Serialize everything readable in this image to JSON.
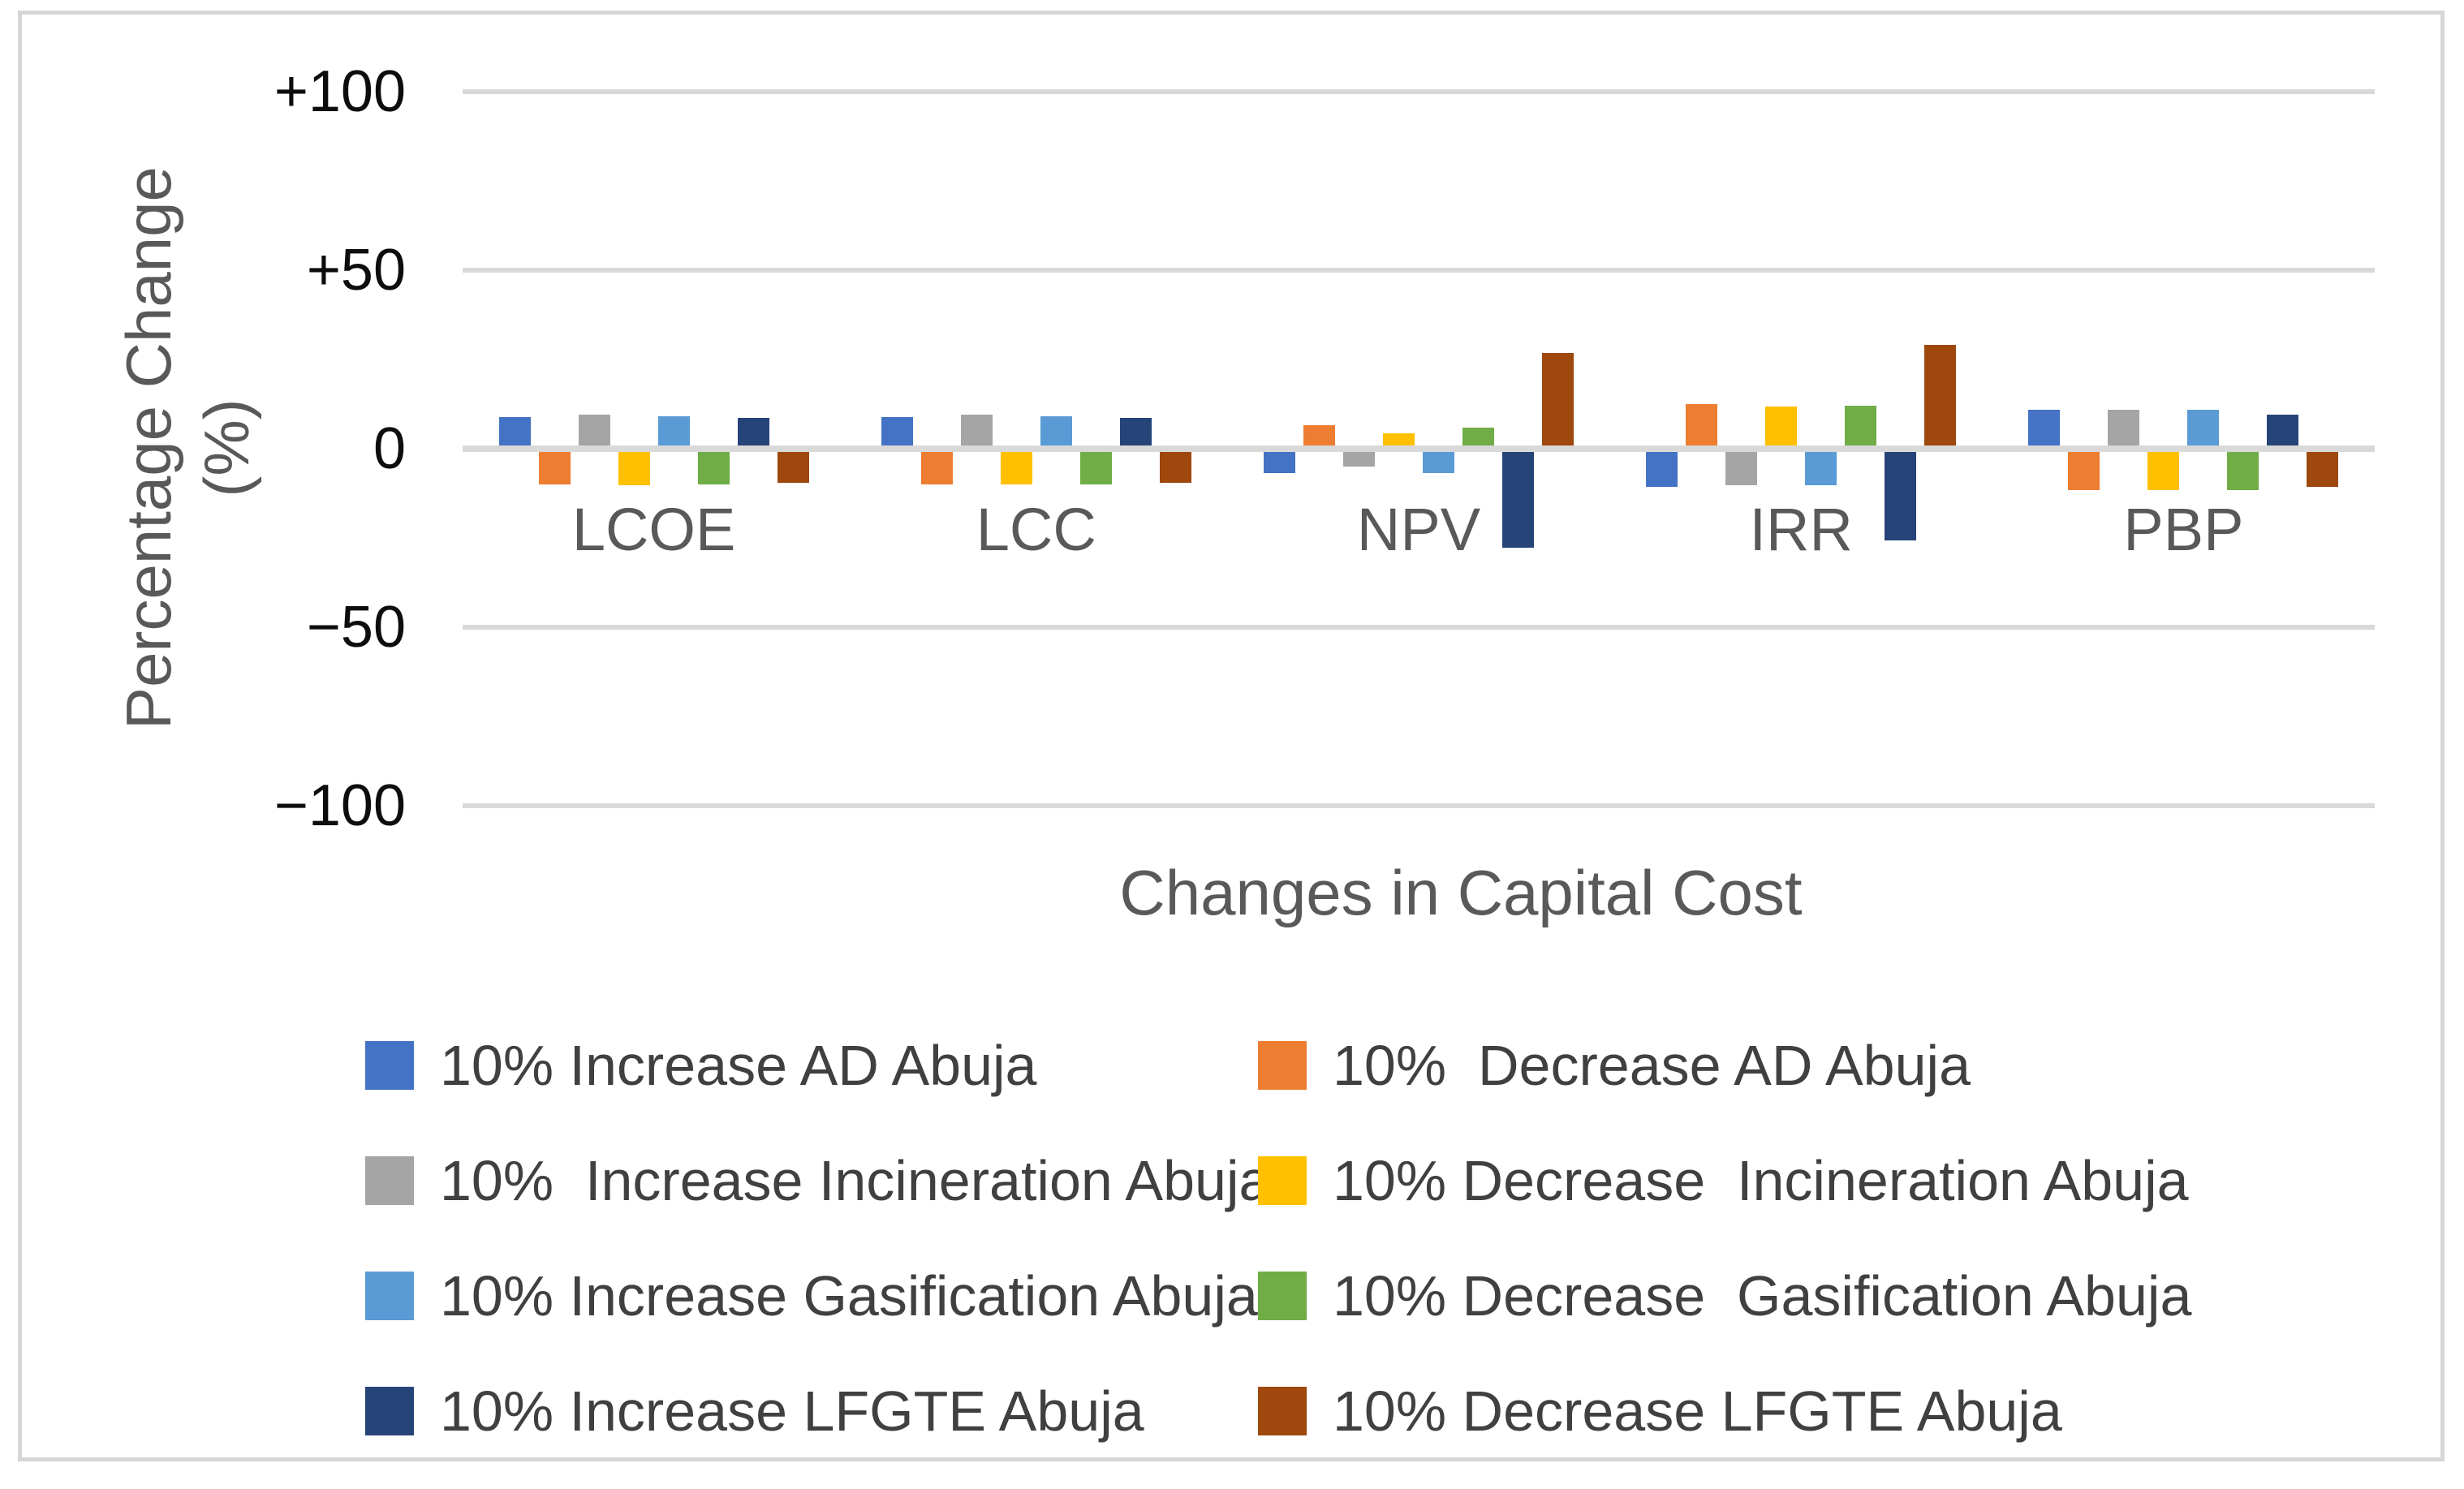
{
  "figure": {
    "x_axis_title": "Changes in Capital Cost",
    "y_axis_title_line1": "Percentage Change",
    "y_axis_title_line2": "(%)"
  },
  "chart_data": {
    "type": "bar",
    "title": "",
    "xlabel": "Changes in Capital Cost",
    "ylabel": "Percentage Change (%)",
    "categories": [
      "LCOE",
      "LCC",
      "NPV",
      "IRR",
      "PBP"
    ],
    "series": [
      {
        "name": "10% Increase AD Abuja",
        "color": "#4472C4",
        "values": [
          8.8,
          8.8,
          -6.8,
          -10.6,
          10.8
        ]
      },
      {
        "name": "10%  Decrease AD Abuja",
        "color": "#ED7D31",
        "values": [
          -10.0,
          -9.9,
          6.5,
          12.5,
          -11.6
        ]
      },
      {
        "name": "10%  Increase Incineration Abuja",
        "color": "#A5A5A5",
        "values": [
          9.5,
          9.5,
          -5.0,
          -10.3,
          10.8
        ]
      },
      {
        "name": "10% Decrease  Incineration Abuja",
        "color": "#FFC000",
        "values": [
          -10.3,
          -10.1,
          4.4,
          11.9,
          -11.6
        ]
      },
      {
        "name": "10% Increase Gasification Abuja",
        "color": "#5B9BD5",
        "values": [
          9.1,
          9.1,
          -6.8,
          -10.3,
          11.0
        ]
      },
      {
        "name": "10% Decrease  Gasification Abuja",
        "color": "#70AD47",
        "values": [
          -9.9,
          -9.9,
          6.0,
          12.0,
          -11.5
        ]
      },
      {
        "name": "10% Increase LFGTE Abuja",
        "color": "#264478",
        "values": [
          8.7,
          8.7,
          -27.7,
          -25.6,
          9.6
        ]
      },
      {
        "name": "10% Decrease LFGTE Abuja",
        "color": "#9E480E",
        "values": [
          -9.6,
          -9.6,
          26.9,
          29.0,
          -10.6
        ]
      }
    ],
    "y_ticks": [
      {
        "label": "+100",
        "value": 100
      },
      {
        "label": "+50",
        "value": 50
      },
      {
        "label": "0",
        "value": 0
      },
      {
        "label": "−50",
        "value": -50
      },
      {
        "label": "−100",
        "value": -100
      }
    ],
    "ylim": [
      -100,
      100
    ],
    "grid": true,
    "zero_line": true,
    "legend_position": "bottom"
  },
  "colors": {
    "grid": "#d9d9d9",
    "frame": "#d6d6d6",
    "tick_text": "#0d0d0d",
    "category_text": "#595959",
    "title_text": "#595959",
    "legend_text": "#404040"
  }
}
